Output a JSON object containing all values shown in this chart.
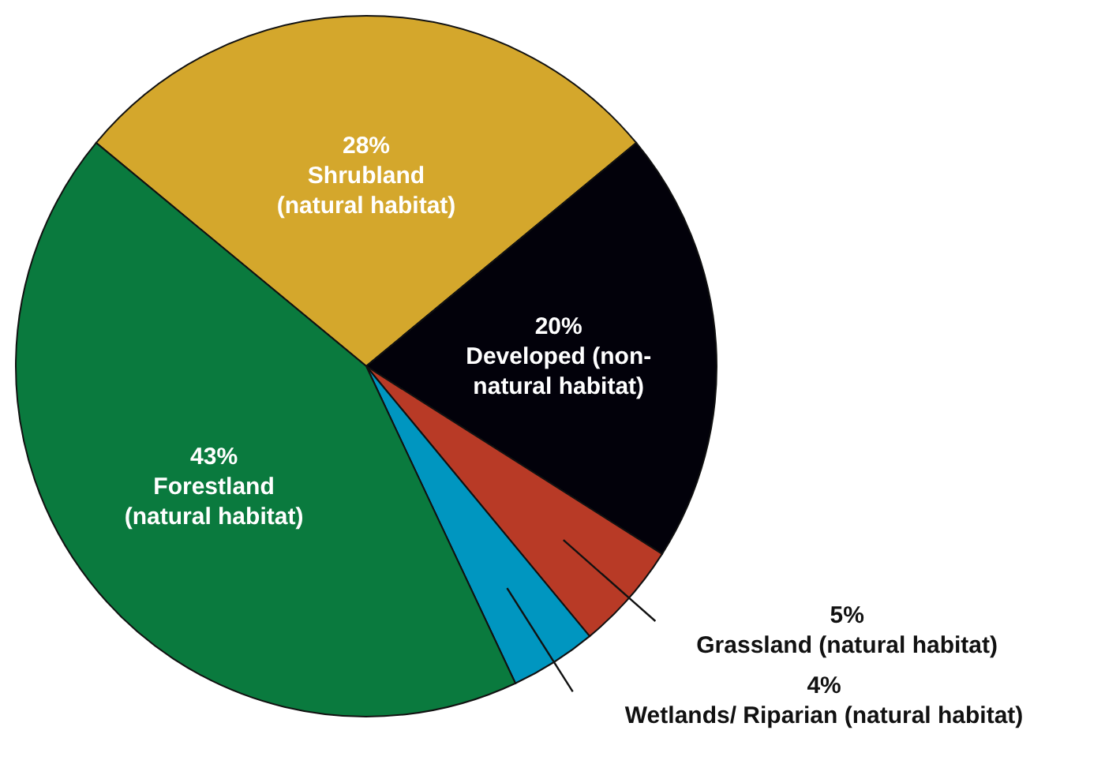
{
  "chart_data": {
    "type": "pie",
    "categories": [
      "Shrubland (natural habitat)",
      "Developed (non-natural habitat)",
      "Grassland (natural habitat)",
      "Wetlands/ Riparian (natural habitat)",
      "Forestland (natural habitat)"
    ],
    "values": [
      28,
      20,
      5,
      4,
      43
    ],
    "value_labels": [
      "28%",
      "20%",
      "5%",
      "4%",
      "43%"
    ],
    "colors": [
      "#d4a72c",
      "#02010a",
      "#b83a26",
      "#0096c0",
      "#0a7a3e"
    ]
  }
}
